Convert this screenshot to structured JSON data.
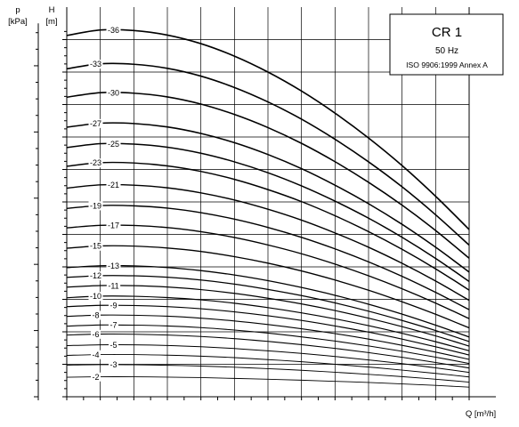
{
  "chart_data": {
    "type": "line",
    "title": "CR 1",
    "frequency": "50 Hz",
    "standard": "ISO 9906:1999 Annex A",
    "xlabel": "Q [m³/h]",
    "ylabel_h": "H",
    "ylabel_h_unit": "[m]",
    "ylabel_p": "p",
    "ylabel_p_unit": "[kPa]",
    "xlim": [
      0,
      2.4
    ],
    "ylim_h": [
      0,
      230
    ],
    "x_ticks": [
      "0.0",
      "0.2",
      "0.4",
      "0.6",
      "0.8",
      "1.0",
      "1.2",
      "1.4",
      "1.6",
      "1.8",
      "2.0",
      "2.2"
    ],
    "h_ticks": [
      "0",
      "20",
      "40",
      "60",
      "80",
      "100",
      "120",
      "140",
      "160",
      "180",
      "200",
      "220"
    ],
    "p_ticks": [
      "0",
      "400",
      "800",
      "1200",
      "1600",
      "2000"
    ],
    "grid": true,
    "legend": "top-right",
    "series": [
      {
        "name": "2",
        "x": [
          0,
          0.2,
          0.4,
          0.6,
          0.8,
          1.0,
          1.2,
          1.4,
          1.6,
          1.8,
          2.0,
          2.2,
          2.4
        ],
        "values": [
          12.0,
          12.3,
          12.3,
          12.1,
          11.8,
          11.3,
          10.8,
          10.2,
          9.5,
          8.8,
          7.9,
          7.0,
          5.9
        ]
      },
      {
        "name": "3",
        "x": [
          0,
          0.2,
          0.4,
          0.6,
          0.8,
          1.0,
          1.2,
          1.4,
          1.6,
          1.8,
          2.0,
          2.2,
          2.4
        ],
        "values": [
          19.5,
          19.8,
          19.7,
          19.4,
          18.9,
          18.2,
          17.3,
          16.3,
          15.1,
          13.8,
          12.4,
          10.8,
          9.0
        ]
      },
      {
        "name": "4",
        "x": [
          0,
          0.2,
          0.4,
          0.6,
          0.8,
          1.0,
          1.2,
          1.4,
          1.6,
          1.8,
          2.0,
          2.2,
          2.4
        ],
        "values": [
          25.5,
          26.0,
          26.0,
          25.6,
          25.0,
          24.1,
          22.9,
          21.6,
          20.0,
          18.3,
          16.4,
          14.4,
          12.2
        ]
      },
      {
        "name": "5",
        "x": [
          0,
          0.2,
          0.4,
          0.6,
          0.8,
          1.0,
          1.2,
          1.4,
          1.6,
          1.8,
          2.0,
          2.2,
          2.4
        ],
        "values": [
          31.5,
          32.0,
          32.0,
          31.6,
          30.8,
          29.7,
          28.3,
          26.7,
          24.8,
          22.7,
          20.4,
          17.8,
          15.0
        ]
      },
      {
        "name": "6",
        "x": [
          0,
          0.2,
          0.4,
          0.6,
          0.8,
          1.0,
          1.2,
          1.4,
          1.6,
          1.8,
          2.0,
          2.2,
          2.4
        ],
        "values": [
          38.0,
          38.6,
          38.5,
          38.0,
          37.1,
          35.8,
          34.1,
          32.1,
          29.8,
          27.2,
          24.3,
          21.1,
          17.7
        ]
      },
      {
        "name": "7",
        "x": [
          0,
          0.2,
          0.4,
          0.6,
          0.8,
          1.0,
          1.2,
          1.4,
          1.6,
          1.8,
          2.0,
          2.2,
          2.4
        ],
        "values": [
          43.5,
          44.2,
          44.1,
          43.6,
          42.6,
          41.1,
          39.2,
          36.9,
          34.3,
          31.3,
          28.0,
          24.4,
          20.5
        ]
      },
      {
        "name": "8",
        "x": [
          0,
          0.2,
          0.4,
          0.6,
          0.8,
          1.0,
          1.2,
          1.4,
          1.6,
          1.8,
          2.0,
          2.2,
          2.4
        ],
        "values": [
          49.5,
          50.3,
          50.2,
          49.6,
          48.4,
          46.7,
          44.5,
          41.9,
          38.9,
          35.5,
          31.7,
          27.5,
          23.0
        ]
      },
      {
        "name": "9",
        "x": [
          0,
          0.2,
          0.4,
          0.6,
          0.8,
          1.0,
          1.2,
          1.4,
          1.6,
          1.8,
          2.0,
          2.2,
          2.4
        ],
        "values": [
          55.5,
          56.3,
          56.2,
          55.5,
          54.2,
          52.3,
          49.9,
          47.0,
          43.6,
          39.8,
          35.5,
          30.8,
          25.7
        ]
      },
      {
        "name": "10",
        "x": [
          0,
          0.2,
          0.4,
          0.6,
          0.8,
          1.0,
          1.2,
          1.4,
          1.6,
          1.8,
          2.0,
          2.2,
          2.4
        ],
        "values": [
          61.0,
          62.0,
          61.9,
          61.1,
          59.7,
          57.6,
          54.9,
          51.7,
          48.0,
          43.8,
          39.1,
          33.9,
          28.3
        ]
      },
      {
        "name": "11",
        "x": [
          0,
          0.2,
          0.4,
          0.6,
          0.8,
          1.0,
          1.2,
          1.4,
          1.6,
          1.8,
          2.0,
          2.2,
          2.4
        ],
        "values": [
          67.5,
          68.5,
          68.4,
          67.6,
          66.0,
          63.7,
          60.7,
          57.2,
          53.1,
          48.4,
          43.2,
          37.5,
          31.2
        ]
      },
      {
        "name": "12",
        "x": [
          0,
          0.2,
          0.4,
          0.6,
          0.8,
          1.0,
          1.2,
          1.4,
          1.6,
          1.8,
          2.0,
          2.2,
          2.4
        ],
        "values": [
          73.5,
          74.6,
          74.5,
          73.6,
          71.9,
          69.4,
          66.1,
          62.3,
          57.8,
          52.7,
          47.0,
          40.8,
          34.0
        ]
      },
      {
        "name": "13",
        "x": [
          0,
          0.2,
          0.4,
          0.6,
          0.8,
          1.0,
          1.2,
          1.4,
          1.6,
          1.8,
          2.0,
          2.2,
          2.4
        ],
        "values": [
          79.5,
          80.7,
          80.6,
          79.6,
          77.7,
          75.0,
          71.5,
          67.3,
          62.5,
          57.0,
          50.9,
          44.1,
          36.8
        ]
      },
      {
        "name": "15",
        "x": [
          0,
          0.2,
          0.4,
          0.6,
          0.8,
          1.0,
          1.2,
          1.4,
          1.6,
          1.8,
          2.0,
          2.2,
          2.4
        ],
        "values": [
          91.5,
          92.9,
          92.8,
          91.6,
          89.5,
          86.3,
          82.3,
          77.5,
          71.9,
          65.6,
          58.5,
          50.8,
          42.4
        ]
      },
      {
        "name": "17",
        "x": [
          0,
          0.2,
          0.4,
          0.6,
          0.8,
          1.0,
          1.2,
          1.4,
          1.6,
          1.8,
          2.0,
          2.2,
          2.4
        ],
        "values": [
          104.0,
          105.6,
          105.5,
          104.2,
          101.7,
          98.1,
          93.5,
          88.1,
          81.7,
          74.5,
          66.5,
          57.7,
          48.1
        ]
      },
      {
        "name": "19",
        "x": [
          0,
          0.2,
          0.4,
          0.6,
          0.8,
          1.0,
          1.2,
          1.4,
          1.6,
          1.8,
          2.0,
          2.2,
          2.4
        ],
        "values": [
          116.0,
          117.8,
          117.6,
          116.2,
          113.4,
          109.4,
          104.3,
          98.2,
          91.1,
          83.1,
          74.2,
          64.3,
          53.6
        ]
      },
      {
        "name": "21",
        "x": [
          0,
          0.2,
          0.4,
          0.6,
          0.8,
          1.0,
          1.2,
          1.4,
          1.6,
          1.8,
          2.0,
          2.2,
          2.4
        ],
        "values": [
          128.5,
          130.5,
          130.3,
          128.7,
          125.6,
          121.2,
          115.5,
          108.8,
          100.9,
          92.1,
          82.2,
          71.3,
          59.4
        ]
      },
      {
        "name": "23",
        "x": [
          0,
          0.2,
          0.4,
          0.6,
          0.8,
          1.0,
          1.2,
          1.4,
          1.6,
          1.8,
          2.0,
          2.2,
          2.4
        ],
        "values": [
          142.0,
          144.2,
          144.0,
          142.2,
          138.8,
          133.9,
          127.6,
          120.2,
          111.5,
          101.7,
          90.8,
          78.8,
          65.7
        ]
      },
      {
        "name": "25",
        "x": [
          0,
          0.2,
          0.4,
          0.6,
          0.8,
          1.0,
          1.2,
          1.4,
          1.6,
          1.8,
          2.0,
          2.2,
          2.4
        ],
        "values": [
          153.5,
          155.9,
          155.6,
          153.7,
          150.0,
          144.7,
          138.0,
          129.9,
          120.5,
          110.0,
          98.2,
          85.2,
          71.0
        ]
      },
      {
        "name": "27",
        "x": [
          0,
          0.2,
          0.4,
          0.6,
          0.8,
          1.0,
          1.2,
          1.4,
          1.6,
          1.8,
          2.0,
          2.2,
          2.4
        ],
        "values": [
          166.0,
          168.5,
          168.3,
          166.2,
          162.2,
          156.5,
          149.2,
          140.5,
          130.3,
          118.9,
          106.2,
          92.1,
          76.8
        ]
      },
      {
        "name": "30",
        "x": [
          0,
          0.2,
          0.4,
          0.6,
          0.8,
          1.0,
          1.2,
          1.4,
          1.6,
          1.8,
          2.0,
          2.2,
          2.4
        ],
        "values": [
          184.5,
          187.3,
          187.0,
          184.7,
          180.3,
          173.9,
          165.8,
          156.1,
          144.8,
          132.1,
          118.0,
          102.4,
          85.3
        ]
      },
      {
        "name": "33",
        "x": [
          0,
          0.2,
          0.4,
          0.6,
          0.8,
          1.0,
          1.2,
          1.4,
          1.6,
          1.8,
          2.0,
          2.2,
          2.4
        ],
        "values": [
          202.0,
          205.1,
          204.8,
          202.3,
          197.5,
          190.5,
          181.6,
          171.0,
          158.6,
          144.7,
          129.3,
          112.1,
          93.4
        ]
      },
      {
        "name": "36",
        "x": [
          0,
          0.2,
          0.4,
          0.6,
          0.8,
          1.0,
          1.2,
          1.4,
          1.6,
          1.8,
          2.0,
          2.2,
          2.4
        ],
        "values": [
          222.5,
          225.9,
          225.6,
          222.8,
          217.5,
          209.8,
          200.0,
          188.3,
          174.7,
          159.4,
          142.4,
          123.5,
          103.0
        ]
      }
    ]
  }
}
